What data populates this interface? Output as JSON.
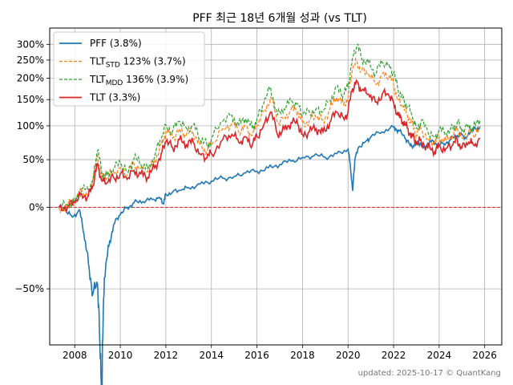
{
  "chart_data": {
    "type": "line",
    "title": "PFF 최근 18년 6개월 성과 (vs TLT)",
    "xlabel": "",
    "ylabel": "",
    "x_ticks": [
      "2008",
      "2010",
      "2012",
      "2014",
      "2016",
      "2018",
      "2020",
      "2022",
      "2024",
      "2026"
    ],
    "y_ticks": [
      "300%",
      "250%",
      "200%",
      "150%",
      "100%",
      "50%",
      "0%",
      "−50%"
    ],
    "xlim": [
      2006.9,
      2026.75
    ],
    "ylim_display": "symlog-like (log of 1+return)",
    "reference_line": {
      "y": 0,
      "color": "#d62728",
      "style": "dashed"
    },
    "legend_position": "top-left",
    "legend": [
      {
        "name": "PFF (3.8%)",
        "color": "#1f77b4",
        "style": "solid"
      },
      {
        "name_main": "TLT",
        "name_sub": "STD",
        "name_rest": " 123% (3.7%)",
        "color": "#ff7f0e",
        "style": "dashed"
      },
      {
        "name_main": "TLT",
        "name_sub": "MDD",
        "name_rest": " 136% (3.9%)",
        "color": "#2ca02c",
        "style": "dashed"
      },
      {
        "name": "TLT (3.3%)",
        "color": "#d62728",
        "style": "solid"
      }
    ],
    "series": [
      {
        "id": "pff",
        "color": "#1f77b4",
        "style": "solid",
        "x": [
          2007.3,
          2007.6,
          2007.9,
          2008.2,
          2008.4,
          2008.6,
          2008.8,
          2009.0,
          2009.1,
          2009.2,
          2009.3,
          2009.5,
          2009.7,
          2010.0,
          2010.3,
          2010.6,
          2011.0,
          2011.4,
          2011.7,
          2011.9,
          2012.0,
          2012.3,
          2012.7,
          2013.0,
          2013.5,
          2014.0,
          2014.5,
          2015.0,
          2015.5,
          2016.0,
          2016.5,
          2017.0,
          2017.5,
          2018.0,
          2018.5,
          2019.0,
          2019.5,
          2020.0,
          2020.1,
          2020.2,
          2020.3,
          2020.5,
          2020.8,
          2021.0,
          2021.5,
          2022.0,
          2022.2,
          2022.5,
          2022.7,
          2022.9,
          2023.1,
          2023.3,
          2023.6,
          2023.9,
          2024.2,
          2024.5,
          2024.8,
          2025.0,
          2025.2,
          2025.4,
          2025.6,
          2025.8
        ],
        "y": [
          0.0,
          -0.02,
          -0.08,
          -0.02,
          -0.2,
          -0.38,
          -0.52,
          -0.48,
          -0.68,
          -0.78,
          -0.45,
          -0.28,
          -0.14,
          -0.06,
          0.0,
          0.04,
          0.05,
          0.07,
          0.09,
          0.03,
          0.12,
          0.14,
          0.16,
          0.18,
          0.22,
          0.25,
          0.28,
          0.3,
          0.34,
          0.36,
          0.4,
          0.44,
          0.48,
          0.53,
          0.55,
          0.53,
          0.58,
          0.64,
          0.42,
          0.15,
          0.5,
          0.68,
          0.76,
          0.82,
          0.9,
          0.98,
          0.93,
          0.8,
          0.72,
          0.68,
          0.74,
          0.66,
          0.76,
          0.7,
          0.72,
          0.78,
          0.84,
          0.86,
          0.8,
          0.92,
          0.95,
          0.99
        ]
      },
      {
        "id": "tlt_std",
        "color": "#ff7f0e",
        "style": "dashed",
        "x": [
          2007.3,
          2007.7,
          2008.0,
          2008.3,
          2008.6,
          2008.8,
          2009.0,
          2009.2,
          2009.4,
          2009.7,
          2010.0,
          2010.3,
          2010.6,
          2010.9,
          2011.2,
          2011.5,
          2011.8,
          2012.0,
          2012.3,
          2012.6,
          2012.9,
          2013.2,
          2013.5,
          2013.8,
          2014.0,
          2014.5,
          2014.9,
          2015.2,
          2015.5,
          2015.8,
          2016.0,
          2016.3,
          2016.6,
          2016.9,
          2017.2,
          2017.5,
          2017.8,
          2018.0,
          2018.3,
          2018.6,
          2018.9,
          2019.2,
          2019.5,
          2019.8,
          2020.0,
          2020.2,
          2020.4,
          2020.6,
          2020.9,
          2021.2,
          2021.5,
          2021.8,
          2022.0,
          2022.2,
          2022.4,
          2022.6,
          2022.8,
          2023.0,
          2023.2,
          2023.5,
          2023.8,
          2024.0,
          2024.3,
          2024.6,
          2024.8,
          2025.0,
          2025.3,
          2025.5,
          2025.8
        ],
        "y": [
          0.0,
          0.02,
          0.05,
          0.15,
          0.12,
          0.25,
          0.55,
          0.3,
          0.28,
          0.35,
          0.4,
          0.32,
          0.45,
          0.4,
          0.35,
          0.48,
          0.7,
          0.9,
          0.8,
          0.95,
          0.85,
          0.9,
          0.7,
          0.62,
          0.7,
          0.95,
          1.05,
          0.9,
          1.0,
          0.85,
          1.0,
          1.25,
          1.55,
          1.05,
          1.15,
          1.3,
          1.25,
          1.05,
          1.1,
          1.15,
          1.1,
          1.3,
          1.55,
          1.4,
          1.55,
          2.25,
          2.45,
          2.2,
          2.1,
          1.85,
          2.1,
          2.05,
          1.85,
          1.5,
          1.35,
          1.2,
          1.05,
          0.85,
          0.95,
          0.8,
          0.72,
          0.82,
          0.78,
          0.85,
          0.95,
          0.8,
          0.9,
          0.85,
          0.98
        ]
      },
      {
        "id": "tlt_mdd",
        "color": "#2ca02c",
        "style": "dashed",
        "x": [
          2007.3,
          2007.7,
          2008.0,
          2008.3,
          2008.6,
          2008.8,
          2009.0,
          2009.2,
          2009.4,
          2009.7,
          2010.0,
          2010.3,
          2010.6,
          2010.9,
          2011.2,
          2011.5,
          2011.8,
          2012.0,
          2012.3,
          2012.6,
          2012.9,
          2013.2,
          2013.5,
          2013.8,
          2014.0,
          2014.5,
          2014.9,
          2015.2,
          2015.5,
          2015.8,
          2016.0,
          2016.3,
          2016.6,
          2016.9,
          2017.2,
          2017.5,
          2017.8,
          2018.0,
          2018.3,
          2018.6,
          2018.9,
          2019.2,
          2019.5,
          2019.8,
          2020.0,
          2020.2,
          2020.4,
          2020.6,
          2020.9,
          2021.2,
          2021.5,
          2021.8,
          2022.0,
          2022.2,
          2022.4,
          2022.6,
          2022.8,
          2023.0,
          2023.2,
          2023.5,
          2023.8,
          2024.0,
          2024.3,
          2024.6,
          2024.8,
          2025.0,
          2025.3,
          2025.5,
          2025.8
        ],
        "y": [
          0.0,
          0.02,
          0.06,
          0.17,
          0.14,
          0.28,
          0.62,
          0.33,
          0.31,
          0.39,
          0.45,
          0.36,
          0.51,
          0.45,
          0.39,
          0.54,
          0.8,
          1.02,
          0.91,
          1.08,
          0.96,
          1.02,
          0.79,
          0.7,
          0.79,
          1.08,
          1.19,
          1.02,
          1.13,
          0.96,
          1.13,
          1.42,
          1.78,
          1.19,
          1.31,
          1.48,
          1.42,
          1.19,
          1.25,
          1.31,
          1.25,
          1.48,
          1.78,
          1.6,
          1.78,
          2.6,
          2.95,
          2.55,
          2.42,
          2.12,
          2.42,
          2.36,
          2.12,
          1.71,
          1.54,
          1.36,
          1.19,
          0.96,
          1.08,
          0.9,
          0.81,
          0.93,
          0.88,
          0.96,
          1.08,
          0.9,
          1.02,
          0.96,
          1.1
        ]
      },
      {
        "id": "tlt",
        "color": "#d62728",
        "style": "solid",
        "x": [
          2007.3,
          2007.7,
          2008.0,
          2008.3,
          2008.6,
          2008.8,
          2009.0,
          2009.2,
          2009.4,
          2009.7,
          2010.0,
          2010.3,
          2010.6,
          2010.9,
          2011.2,
          2011.5,
          2011.8,
          2012.0,
          2012.3,
          2012.6,
          2012.9,
          2013.2,
          2013.5,
          2013.8,
          2014.0,
          2014.5,
          2014.9,
          2015.2,
          2015.5,
          2015.8,
          2016.0,
          2016.3,
          2016.6,
          2016.9,
          2017.2,
          2017.5,
          2017.8,
          2018.0,
          2018.3,
          2018.6,
          2018.9,
          2019.2,
          2019.5,
          2019.8,
          2020.0,
          2020.2,
          2020.4,
          2020.6,
          2020.9,
          2021.2,
          2021.5,
          2021.8,
          2022.0,
          2022.2,
          2022.4,
          2022.6,
          2022.8,
          2023.0,
          2023.2,
          2023.5,
          2023.8,
          2024.0,
          2024.3,
          2024.6,
          2024.8,
          2025.0,
          2025.3,
          2025.5,
          2025.8
        ],
        "y": [
          0.0,
          0.01,
          0.04,
          0.12,
          0.1,
          0.2,
          0.45,
          0.25,
          0.23,
          0.29,
          0.33,
          0.27,
          0.37,
          0.33,
          0.29,
          0.4,
          0.58,
          0.75,
          0.66,
          0.78,
          0.7,
          0.74,
          0.58,
          0.52,
          0.58,
          0.78,
          0.86,
          0.74,
          0.82,
          0.7,
          0.82,
          1.02,
          1.25,
          0.86,
          0.95,
          1.06,
          1.02,
          0.86,
          0.9,
          0.95,
          0.9,
          1.06,
          1.25,
          1.14,
          1.25,
          1.75,
          1.92,
          1.7,
          1.62,
          1.45,
          1.62,
          1.58,
          1.45,
          1.18,
          1.07,
          0.96,
          0.86,
          0.7,
          0.78,
          0.66,
          0.6,
          0.68,
          0.65,
          0.7,
          0.78,
          0.66,
          0.74,
          0.7,
          0.8
        ]
      }
    ]
  },
  "footer": "updated: 2025-10-17 © QuantKang"
}
